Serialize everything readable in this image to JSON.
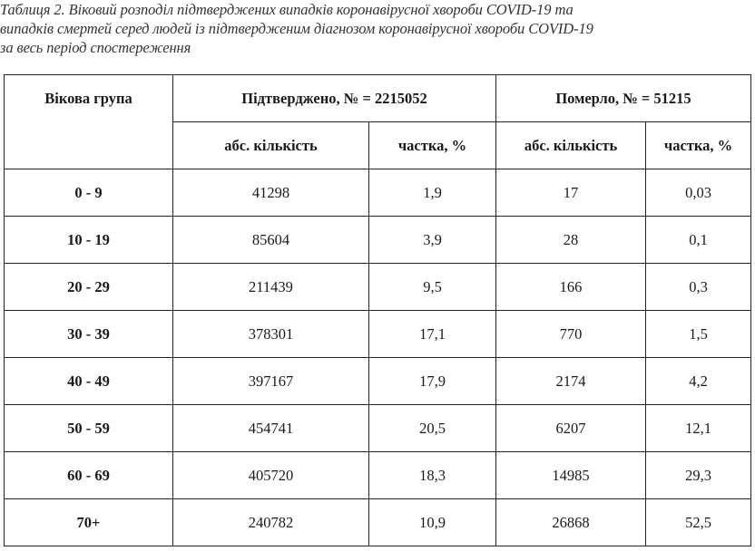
{
  "caption": {
    "lines": [
      "Таблиця 2. Віковий розподіл підтверджених випадків коронавірусної хвороби COVID-19 та",
      "випадків смертей серед людей із підтвердженим діагнозом коронавірусної хвороби COVID-19",
      "за весь період спостереження"
    ]
  },
  "table": {
    "headers": {
      "age_group": "Вікова група",
      "confirmed": "Підтверджено, № = 2215052",
      "deaths": "Померло, № = 51215",
      "abs_count": "абс. кількість",
      "share_pct": "частка, %"
    },
    "rows": [
      {
        "age": "0 - 9",
        "confirmed_abs": "41298",
        "confirmed_pct": "1,9",
        "deaths_abs": "17",
        "deaths_pct": "0,03"
      },
      {
        "age": "10 - 19",
        "confirmed_abs": "85604",
        "confirmed_pct": "3,9",
        "deaths_abs": "28",
        "deaths_pct": "0,1"
      },
      {
        "age": "20 - 29",
        "confirmed_abs": "211439",
        "confirmed_pct": "9,5",
        "deaths_abs": "166",
        "deaths_pct": "0,3"
      },
      {
        "age": "30 - 39",
        "confirmed_abs": "378301",
        "confirmed_pct": "17,1",
        "deaths_abs": "770",
        "deaths_pct": "1,5"
      },
      {
        "age": "40 - 49",
        "confirmed_abs": "397167",
        "confirmed_pct": "17,9",
        "deaths_abs": "2174",
        "deaths_pct": "4,2"
      },
      {
        "age": "50 - 59",
        "confirmed_abs": "454741",
        "confirmed_pct": "20,5",
        "deaths_abs": "6207",
        "deaths_pct": "12,1"
      },
      {
        "age": "60 - 69",
        "confirmed_abs": "405720",
        "confirmed_pct": "18,3",
        "deaths_abs": "14985",
        "deaths_pct": "29,3"
      },
      {
        "age": "70+",
        "confirmed_abs": "240782",
        "confirmed_pct": "10,9",
        "deaths_abs": "26868",
        "deaths_pct": "52,5"
      }
    ]
  }
}
